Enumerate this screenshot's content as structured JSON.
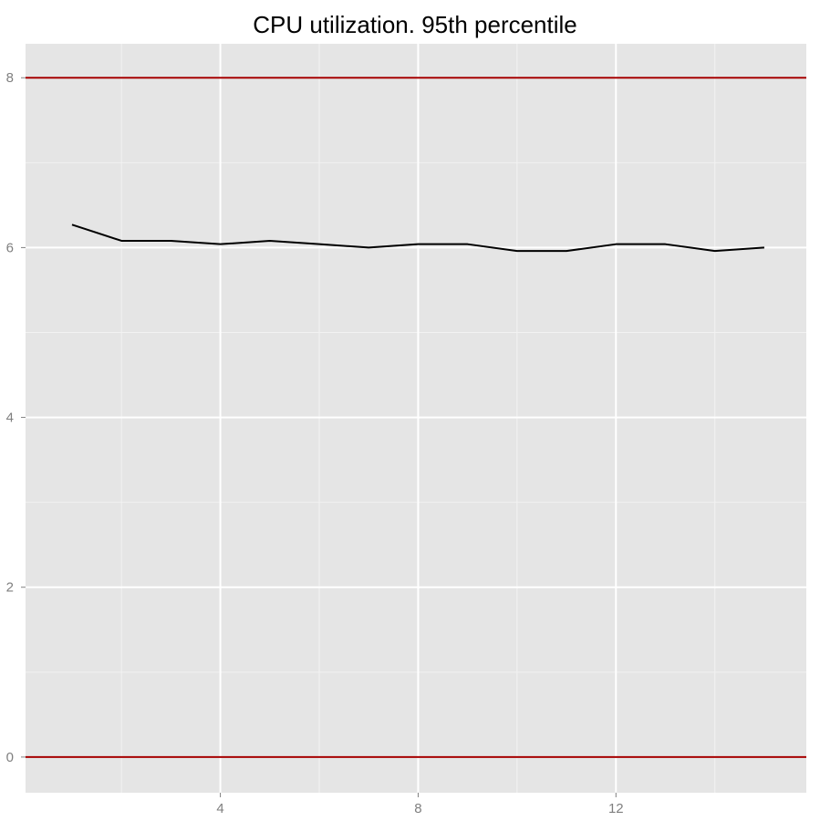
{
  "chart_data": {
    "type": "line",
    "title": "CPU utilization. 95th percentile",
    "xlabel": "",
    "ylabel": "",
    "xlim": [
      0.06,
      15.85
    ],
    "ylim": [
      -0.42,
      8.4
    ],
    "grid": true,
    "x_ticks": [
      4,
      8,
      12
    ],
    "x_minor_ticks": [
      2,
      6,
      10,
      14
    ],
    "y_ticks": [
      0,
      2,
      4,
      6,
      8
    ],
    "y_minor_ticks": [
      1,
      3,
      5,
      7
    ],
    "x": [
      1,
      2,
      3,
      4,
      5,
      6,
      7,
      8,
      9,
      10,
      11,
      12,
      13,
      14,
      15
    ],
    "series": [
      {
        "values": [
          6.27,
          6.08,
          6.08,
          6.04,
          6.08,
          6.04,
          6.0,
          6.04,
          6.04,
          5.96,
          5.96,
          6.04,
          6.04,
          5.96,
          6.0
        ]
      }
    ],
    "hlines": [
      {
        "y": 8,
        "color": "#a50000"
      },
      {
        "y": 0,
        "color": "#a50000"
      }
    ],
    "colors": {
      "panel_background": "#e5e5e5",
      "grid_major": "#ffffff",
      "grid_minor": "#f2f2f2",
      "line": "#000000",
      "tick_label": "#7f7f7f"
    }
  }
}
